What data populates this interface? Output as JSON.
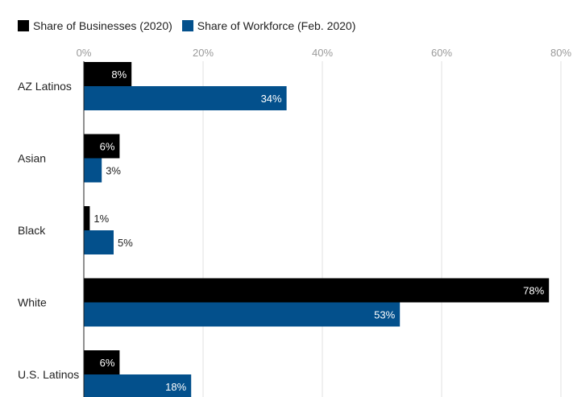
{
  "chart_data": {
    "type": "bar",
    "orientation": "horizontal",
    "title": "",
    "xlabel": "",
    "ylabel": "",
    "categories": [
      "AZ Latinos",
      "Asian",
      "Black",
      "White",
      "U.S. Latinos"
    ],
    "series": [
      {
        "name": "Share of Businesses (2020)",
        "color": "#000000",
        "values": [
          8,
          6,
          1,
          78,
          6
        ],
        "labels": [
          "8%",
          "6%",
          "1%",
          "78%",
          "6%"
        ]
      },
      {
        "name": "Share of Workforce (Feb. 2020)",
        "color": "#03508c",
        "values": [
          34,
          3,
          5,
          53,
          18
        ],
        "labels": [
          "34%",
          "3%",
          "5%",
          "53%",
          "18%"
        ]
      }
    ],
    "xlim": [
      0,
      80
    ],
    "ticks": [
      0,
      20,
      40,
      60,
      80
    ],
    "tick_labels": [
      "0%",
      "20%",
      "40%",
      "60%",
      "80%"
    ],
    "grid": true,
    "legend_position": "top-left"
  }
}
